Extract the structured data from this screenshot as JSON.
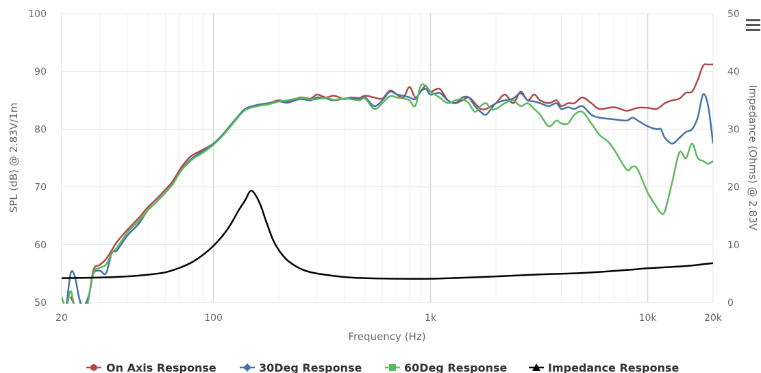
{
  "chart_data": {
    "type": "line",
    "xlabel": "Frequency (Hz)",
    "ylabel_left": "SPL (dB) @ 2.83V/1m",
    "ylabel_right": "Impedance (Ohms) @ 2.83V",
    "x_scale": "log",
    "xlim": [
      20,
      20000
    ],
    "ylim_left": [
      50,
      100
    ],
    "ylim_right": [
      0,
      50
    ],
    "x_ticks": [
      {
        "value": 20,
        "label": "20"
      },
      {
        "value": 100,
        "label": "100"
      },
      {
        "value": 1000,
        "label": "1k"
      },
      {
        "value": 10000,
        "label": "10k"
      },
      {
        "value": 20000,
        "label": "20k"
      }
    ],
    "y_ticks_left": [
      {
        "value": 50,
        "label": "50"
      },
      {
        "value": 60,
        "label": "60"
      },
      {
        "value": 70,
        "label": "70"
      },
      {
        "value": 80,
        "label": "80"
      },
      {
        "value": 90,
        "label": "90"
      },
      {
        "value": 100,
        "label": "100"
      }
    ],
    "y_ticks_right": [
      {
        "value": 0,
        "label": "0"
      },
      {
        "value": 10,
        "label": "10"
      },
      {
        "value": 20,
        "label": "20"
      },
      {
        "value": 30,
        "label": "30"
      },
      {
        "value": 40,
        "label": "40"
      },
      {
        "value": 50,
        "label": "50"
      }
    ],
    "grid": true,
    "legend_position": "bottom-center",
    "series": [
      {
        "name": "On Axis Response",
        "color": "#b04a48",
        "marker": "circle",
        "axis": "left",
        "points": [
          [
            22,
            51
          ],
          [
            23.5,
            49
          ],
          [
            26,
            49
          ],
          [
            28,
            55.5
          ],
          [
            30,
            56.5
          ],
          [
            32,
            57.5
          ],
          [
            34,
            59
          ],
          [
            36,
            60.5
          ],
          [
            40,
            62.5
          ],
          [
            45,
            64.5
          ],
          [
            50,
            66.5
          ],
          [
            55,
            68
          ],
          [
            60,
            69.5
          ],
          [
            65,
            71
          ],
          [
            70,
            73
          ],
          [
            75,
            74.5
          ],
          [
            80,
            75.5
          ],
          [
            90,
            76.5
          ],
          [
            100,
            77.5
          ],
          [
            110,
            79
          ],
          [
            125,
            81.5
          ],
          [
            140,
            83.5
          ],
          [
            160,
            84.2
          ],
          [
            180,
            84.5
          ],
          [
            200,
            85
          ],
          [
            220,
            84.7
          ],
          [
            250,
            85.5
          ],
          [
            280,
            85.3
          ],
          [
            300,
            86
          ],
          [
            330,
            85.5
          ],
          [
            360,
            85.8
          ],
          [
            400,
            85.2
          ],
          [
            430,
            85.5
          ],
          [
            470,
            85.4
          ],
          [
            500,
            85.8
          ],
          [
            550,
            85.5
          ],
          [
            600,
            85.3
          ],
          [
            650,
            86.7
          ],
          [
            700,
            86
          ],
          [
            750,
            85.5
          ],
          [
            800,
            87.3
          ],
          [
            850,
            85.5
          ],
          [
            900,
            86.5
          ],
          [
            950,
            87.5
          ],
          [
            1000,
            86.5
          ],
          [
            1100,
            87
          ],
          [
            1200,
            85
          ],
          [
            1300,
            84.5
          ],
          [
            1400,
            85
          ],
          [
            1500,
            85.5
          ],
          [
            1600,
            84.5
          ],
          [
            1700,
            83.5
          ],
          [
            1800,
            83.5
          ],
          [
            1900,
            84
          ],
          [
            2000,
            84.5
          ],
          [
            2200,
            86
          ],
          [
            2400,
            84.5
          ],
          [
            2600,
            86.5
          ],
          [
            2800,
            85
          ],
          [
            3000,
            86
          ],
          [
            3200,
            85
          ],
          [
            3500,
            84.5
          ],
          [
            3800,
            85
          ],
          [
            4000,
            84
          ],
          [
            4300,
            84.5
          ],
          [
            4600,
            84.5
          ],
          [
            5000,
            85.5
          ],
          [
            5500,
            84.5
          ],
          [
            6000,
            83.5
          ],
          [
            7000,
            83.8
          ],
          [
            8000,
            83.2
          ],
          [
            9000,
            83.7
          ],
          [
            10000,
            83.7
          ],
          [
            11000,
            83.5
          ],
          [
            12000,
            84.5
          ],
          [
            13000,
            85
          ],
          [
            14000,
            85.3
          ],
          [
            15000,
            86.3
          ],
          [
            16000,
            86.5
          ],
          [
            17000,
            88.5
          ],
          [
            18000,
            91
          ],
          [
            19000,
            91.2
          ],
          [
            20000,
            91.2
          ]
        ]
      },
      {
        "name": "30Deg Response",
        "color": "#4572a7",
        "marker": "diamond",
        "axis": "left",
        "points": [
          [
            21,
            49
          ],
          [
            22,
            55
          ],
          [
            23,
            54.5
          ],
          [
            24,
            51
          ],
          [
            25,
            49
          ],
          [
            26,
            50
          ],
          [
            27,
            52
          ],
          [
            28,
            55
          ],
          [
            30,
            55.5
          ],
          [
            32,
            55
          ],
          [
            34,
            58.5
          ],
          [
            36,
            59
          ],
          [
            40,
            61.5
          ],
          [
            45,
            63.5
          ],
          [
            50,
            66
          ],
          [
            55,
            67.5
          ],
          [
            60,
            69
          ],
          [
            65,
            70.5
          ],
          [
            70,
            72.5
          ],
          [
            75,
            74
          ],
          [
            80,
            75
          ],
          [
            90,
            76.3
          ],
          [
            100,
            77.5
          ],
          [
            110,
            79
          ],
          [
            125,
            81.5
          ],
          [
            140,
            83.5
          ],
          [
            160,
            84.2
          ],
          [
            180,
            84.5
          ],
          [
            200,
            84.8
          ],
          [
            220,
            84.6
          ],
          [
            250,
            85.2
          ],
          [
            280,
            85
          ],
          [
            300,
            85.5
          ],
          [
            330,
            85.3
          ],
          [
            360,
            85
          ],
          [
            400,
            85.3
          ],
          [
            430,
            85.4
          ],
          [
            470,
            85.2
          ],
          [
            500,
            85.5
          ],
          [
            550,
            84
          ],
          [
            600,
            85
          ],
          [
            650,
            86.5
          ],
          [
            700,
            86
          ],
          [
            750,
            85.8
          ],
          [
            800,
            85.5
          ],
          [
            850,
            85.2
          ],
          [
            900,
            86.5
          ],
          [
            950,
            87
          ],
          [
            1000,
            86
          ],
          [
            1100,
            86.3
          ],
          [
            1200,
            85
          ],
          [
            1300,
            84.5
          ],
          [
            1400,
            85.5
          ],
          [
            1500,
            85.5
          ],
          [
            1600,
            84
          ],
          [
            1700,
            83
          ],
          [
            1800,
            82.5
          ],
          [
            1900,
            83.5
          ],
          [
            2000,
            84.5
          ],
          [
            2200,
            85
          ],
          [
            2400,
            85.3
          ],
          [
            2600,
            86.2
          ],
          [
            2800,
            85
          ],
          [
            3000,
            84.8
          ],
          [
            3200,
            84.5
          ],
          [
            3500,
            84
          ],
          [
            3800,
            84.5
          ],
          [
            4000,
            83.5
          ],
          [
            4300,
            83.8
          ],
          [
            4600,
            83.5
          ],
          [
            5000,
            84
          ],
          [
            5500,
            82.5
          ],
          [
            6000,
            82
          ],
          [
            7000,
            81.7
          ],
          [
            8000,
            81.5
          ],
          [
            8500,
            82
          ],
          [
            9000,
            81.5
          ],
          [
            10000,
            80.5
          ],
          [
            11000,
            80
          ],
          [
            11500,
            80
          ],
          [
            12000,
            78.5
          ],
          [
            13000,
            77.5
          ],
          [
            14000,
            78.5
          ],
          [
            15000,
            79.5
          ],
          [
            16000,
            80
          ],
          [
            17000,
            82
          ],
          [
            18000,
            86
          ],
          [
            19000,
            84
          ],
          [
            20000,
            77.5
          ]
        ]
      },
      {
        "name": "60Deg Response",
        "color": "#5cb85c",
        "marker": "square",
        "axis": "left",
        "points": [
          [
            20,
            51
          ],
          [
            21,
            49
          ],
          [
            22,
            52
          ],
          [
            23,
            49
          ],
          [
            24,
            49
          ],
          [
            26,
            49
          ],
          [
            28,
            55
          ],
          [
            30,
            56
          ],
          [
            32,
            56.5
          ],
          [
            34,
            58.5
          ],
          [
            36,
            59.5
          ],
          [
            40,
            62
          ],
          [
            45,
            64
          ],
          [
            50,
            66
          ],
          [
            55,
            67.5
          ],
          [
            60,
            69
          ],
          [
            65,
            70.5
          ],
          [
            70,
            72.5
          ],
          [
            75,
            73.8
          ],
          [
            80,
            74.8
          ],
          [
            90,
            76
          ],
          [
            100,
            77.3
          ],
          [
            110,
            78.8
          ],
          [
            125,
            81.3
          ],
          [
            140,
            83.3
          ],
          [
            160,
            84
          ],
          [
            180,
            84.3
          ],
          [
            200,
            84.8
          ],
          [
            220,
            85
          ],
          [
            250,
            85.4
          ],
          [
            280,
            85.2
          ],
          [
            300,
            85.2
          ],
          [
            330,
            85.4
          ],
          [
            360,
            85.1
          ],
          [
            400,
            85.3
          ],
          [
            430,
            85.2
          ],
          [
            470,
            85
          ],
          [
            500,
            85.3
          ],
          [
            550,
            83.5
          ],
          [
            600,
            84.5
          ],
          [
            650,
            85.7
          ],
          [
            700,
            85.5
          ],
          [
            750,
            85.3
          ],
          [
            800,
            85
          ],
          [
            850,
            84
          ],
          [
            900,
            87.5
          ],
          [
            950,
            87.5
          ],
          [
            1000,
            86.5
          ],
          [
            1100,
            85.5
          ],
          [
            1200,
            84.5
          ],
          [
            1300,
            85
          ],
          [
            1400,
            85.2
          ],
          [
            1500,
            84.5
          ],
          [
            1600,
            83
          ],
          [
            1700,
            84
          ],
          [
            1800,
            84.5
          ],
          [
            1900,
            83.5
          ],
          [
            2000,
            83.5
          ],
          [
            2200,
            84.5
          ],
          [
            2400,
            85
          ],
          [
            2600,
            84
          ],
          [
            2800,
            84.5
          ],
          [
            3000,
            83.5
          ],
          [
            3200,
            82.5
          ],
          [
            3500,
            80.5
          ],
          [
            3800,
            81.5
          ],
          [
            4000,
            81
          ],
          [
            4300,
            81
          ],
          [
            4600,
            82.5
          ],
          [
            5000,
            83
          ],
          [
            5500,
            81
          ],
          [
            6000,
            79
          ],
          [
            6500,
            78
          ],
          [
            7000,
            76.5
          ],
          [
            8000,
            73
          ],
          [
            8500,
            73.5
          ],
          [
            9000,
            73
          ],
          [
            10000,
            69
          ],
          [
            11000,
            66.5
          ],
          [
            11500,
            65.5
          ],
          [
            12000,
            65.8
          ],
          [
            13000,
            71
          ],
          [
            14000,
            76
          ],
          [
            15000,
            75
          ],
          [
            16000,
            77.5
          ],
          [
            17000,
            75
          ],
          [
            18000,
            74.5
          ],
          [
            19000,
            74
          ],
          [
            20000,
            74.5
          ]
        ]
      },
      {
        "name": "Impedance Response",
        "color": "#000000",
        "marker": "triangle",
        "axis": "right",
        "points": [
          [
            20,
            4.2
          ],
          [
            30,
            4.3
          ],
          [
            40,
            4.5
          ],
          [
            50,
            4.8
          ],
          [
            60,
            5.2
          ],
          [
            70,
            6
          ],
          [
            80,
            7
          ],
          [
            90,
            8.3
          ],
          [
            100,
            9.8
          ],
          [
            110,
            11.5
          ],
          [
            120,
            13.5
          ],
          [
            130,
            15.8
          ],
          [
            140,
            17.7
          ],
          [
            148,
            19.3
          ],
          [
            155,
            18.8
          ],
          [
            165,
            16.8
          ],
          [
            175,
            14
          ],
          [
            190,
            10.5
          ],
          [
            210,
            8
          ],
          [
            230,
            6.7
          ],
          [
            260,
            5.6
          ],
          [
            300,
            5
          ],
          [
            400,
            4.4
          ],
          [
            500,
            4.2
          ],
          [
            700,
            4.1
          ],
          [
            1000,
            4.1
          ],
          [
            1500,
            4.3
          ],
          [
            2000,
            4.5
          ],
          [
            3000,
            4.8
          ],
          [
            5000,
            5.1
          ],
          [
            8000,
            5.6
          ],
          [
            10000,
            5.9
          ],
          [
            15000,
            6.3
          ],
          [
            20000,
            6.8
          ]
        ]
      }
    ]
  }
}
